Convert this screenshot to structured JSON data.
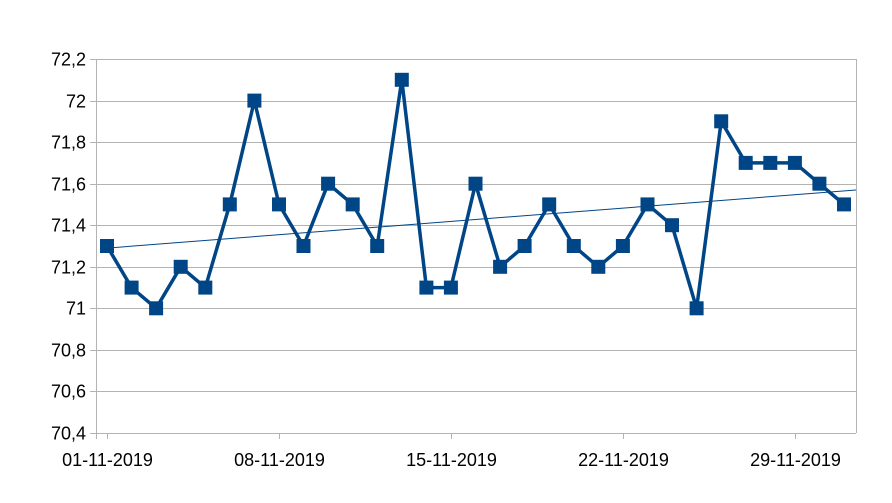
{
  "chart_data": {
    "type": "line",
    "title": "",
    "xlabel": "",
    "ylabel": "",
    "x_start": "2019-11-01",
    "x_ticks": [
      {
        "date": "2019-11-01",
        "label": "01-11-2019"
      },
      {
        "date": "2019-11-08",
        "label": "08-11-2019"
      },
      {
        "date": "2019-11-15",
        "label": "15-11-2019"
      },
      {
        "date": "2019-11-22",
        "label": "22-11-2019"
      },
      {
        "date": "2019-11-29",
        "label": "29-11-2019"
      }
    ],
    "xlim": [
      "2019-11-01",
      "2019-12-01"
    ],
    "ylim": [
      70.4,
      72.2
    ],
    "y_ticks": [
      70.4,
      70.6,
      70.8,
      71,
      71.2,
      71.4,
      71.6,
      71.8,
      72,
      72.2
    ],
    "y_tick_labels": [
      "70,4",
      "70,6",
      "70,8",
      "71",
      "71,2",
      "71,4",
      "71,6",
      "71,8",
      "72",
      "72,2"
    ],
    "grid": "horizontal",
    "legend": "none",
    "series": [
      {
        "color": "#004586",
        "marker": "square",
        "points": [
          {
            "x": "2019-11-01",
            "y": 71.3
          },
          {
            "x": "2019-11-02",
            "y": 71.1
          },
          {
            "x": "2019-11-03",
            "y": 71.0
          },
          {
            "x": "2019-11-04",
            "y": 71.2
          },
          {
            "x": "2019-11-05",
            "y": 71.1
          },
          {
            "x": "2019-11-06",
            "y": 71.5
          },
          {
            "x": "2019-11-07",
            "y": 72.0
          },
          {
            "x": "2019-11-08",
            "y": 71.5
          },
          {
            "x": "2019-11-09",
            "y": 71.3
          },
          {
            "x": "2019-11-10",
            "y": 71.6
          },
          {
            "x": "2019-11-11",
            "y": 71.5
          },
          {
            "x": "2019-11-12",
            "y": 71.3
          },
          {
            "x": "2019-11-13",
            "y": 72.1
          },
          {
            "x": "2019-11-14",
            "y": 71.1
          },
          {
            "x": "2019-11-15",
            "y": 71.1
          },
          {
            "x": "2019-11-16",
            "y": 71.6
          },
          {
            "x": "2019-11-17",
            "y": 71.2
          },
          {
            "x": "2019-11-18",
            "y": 71.3
          },
          {
            "x": "2019-11-19",
            "y": 71.5
          },
          {
            "x": "2019-11-20",
            "y": 71.3
          },
          {
            "x": "2019-11-21",
            "y": 71.2
          },
          {
            "x": "2019-11-22",
            "y": 71.3
          },
          {
            "x": "2019-11-23",
            "y": 71.5
          },
          {
            "x": "2019-11-24",
            "y": 71.4
          },
          {
            "x": "2019-11-25",
            "y": 71.0
          },
          {
            "x": "2019-11-26",
            "y": 71.9
          },
          {
            "x": "2019-11-27",
            "y": 71.7
          },
          {
            "x": "2019-11-28",
            "y": 71.7
          },
          {
            "x": "2019-11-29",
            "y": 71.7
          },
          {
            "x": "2019-11-30",
            "y": 71.6
          },
          {
            "x": "2019-12-01",
            "y": 71.5
          }
        ]
      }
    ],
    "trendline": {
      "type": "linear",
      "color": "#004586",
      "start": {
        "x": "2019-11-01",
        "y": 71.29
      },
      "end": {
        "x": "2019-12-01",
        "y": 71.565
      }
    }
  }
}
